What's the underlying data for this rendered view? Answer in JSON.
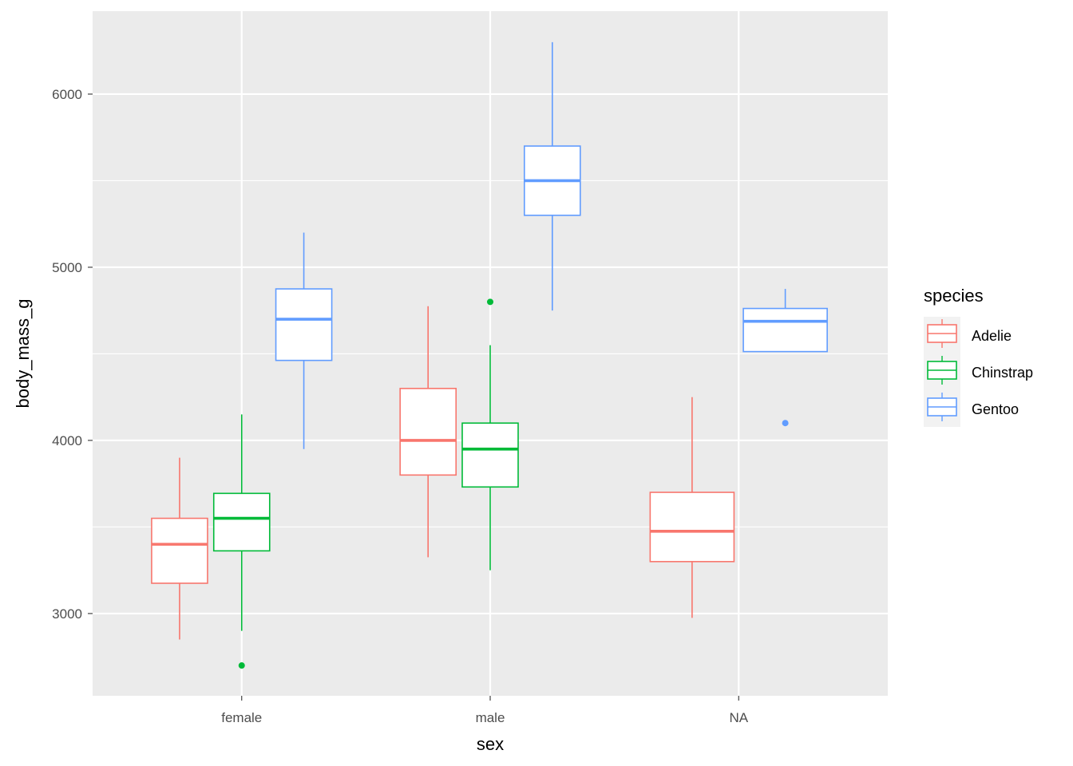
{
  "chart_data": {
    "type": "boxplot",
    "xlabel": "sex",
    "ylabel": "body_mass_g",
    "categories": [
      "female",
      "male",
      "NA"
    ],
    "ylim": [
      2525,
      6479
    ],
    "yticks": [
      3000,
      4000,
      5000,
      6000
    ],
    "yticks_minor": [
      3500,
      4500,
      5500
    ],
    "grid": true,
    "legend": {
      "title": "species",
      "position": "right",
      "entries": [
        "Adelie",
        "Chinstrap",
        "Gentoo"
      ]
    },
    "colors": {
      "Adelie": "#F8766D",
      "Chinstrap": "#00BA38",
      "Gentoo": "#619CFF"
    },
    "boxes": [
      {
        "sex": "female",
        "species": "Adelie",
        "slot": 0,
        "nslots": 3,
        "low": 2850,
        "q1": 3175,
        "median": 3400,
        "q3": 3550,
        "high": 3900,
        "outliers": []
      },
      {
        "sex": "female",
        "species": "Chinstrap",
        "slot": 1,
        "nslots": 3,
        "low": 2900,
        "q1": 3362,
        "median": 3550,
        "q3": 3694,
        "high": 4150,
        "outliers": [
          2700
        ]
      },
      {
        "sex": "female",
        "species": "Gentoo",
        "slot": 2,
        "nslots": 3,
        "low": 3950,
        "q1": 4462,
        "median": 4700,
        "q3": 4875,
        "high": 5200,
        "outliers": []
      },
      {
        "sex": "male",
        "species": "Adelie",
        "slot": 0,
        "nslots": 3,
        "low": 3325,
        "q1": 3800,
        "median": 4000,
        "q3": 4300,
        "high": 4775,
        "outliers": []
      },
      {
        "sex": "male",
        "species": "Chinstrap",
        "slot": 1,
        "nslots": 3,
        "low": 3250,
        "q1": 3731,
        "median": 3950,
        "q3": 4100,
        "high": 4550,
        "outliers": [
          4800
        ]
      },
      {
        "sex": "male",
        "species": "Gentoo",
        "slot": 2,
        "nslots": 3,
        "low": 4750,
        "q1": 5300,
        "median": 5500,
        "q3": 5700,
        "high": 6300,
        "outliers": []
      },
      {
        "sex": "NA",
        "species": "Adelie",
        "slot": 0,
        "nslots": 2,
        "low": 2975,
        "q1": 3300,
        "median": 3475,
        "q3": 3700,
        "high": 4250,
        "outliers": []
      },
      {
        "sex": "NA",
        "species": "Gentoo",
        "slot": 1,
        "nslots": 2,
        "low": 4513,
        "q1": 4513,
        "median": 4688,
        "q3": 4762,
        "high": 4875,
        "outliers": [
          4100
        ]
      }
    ]
  }
}
